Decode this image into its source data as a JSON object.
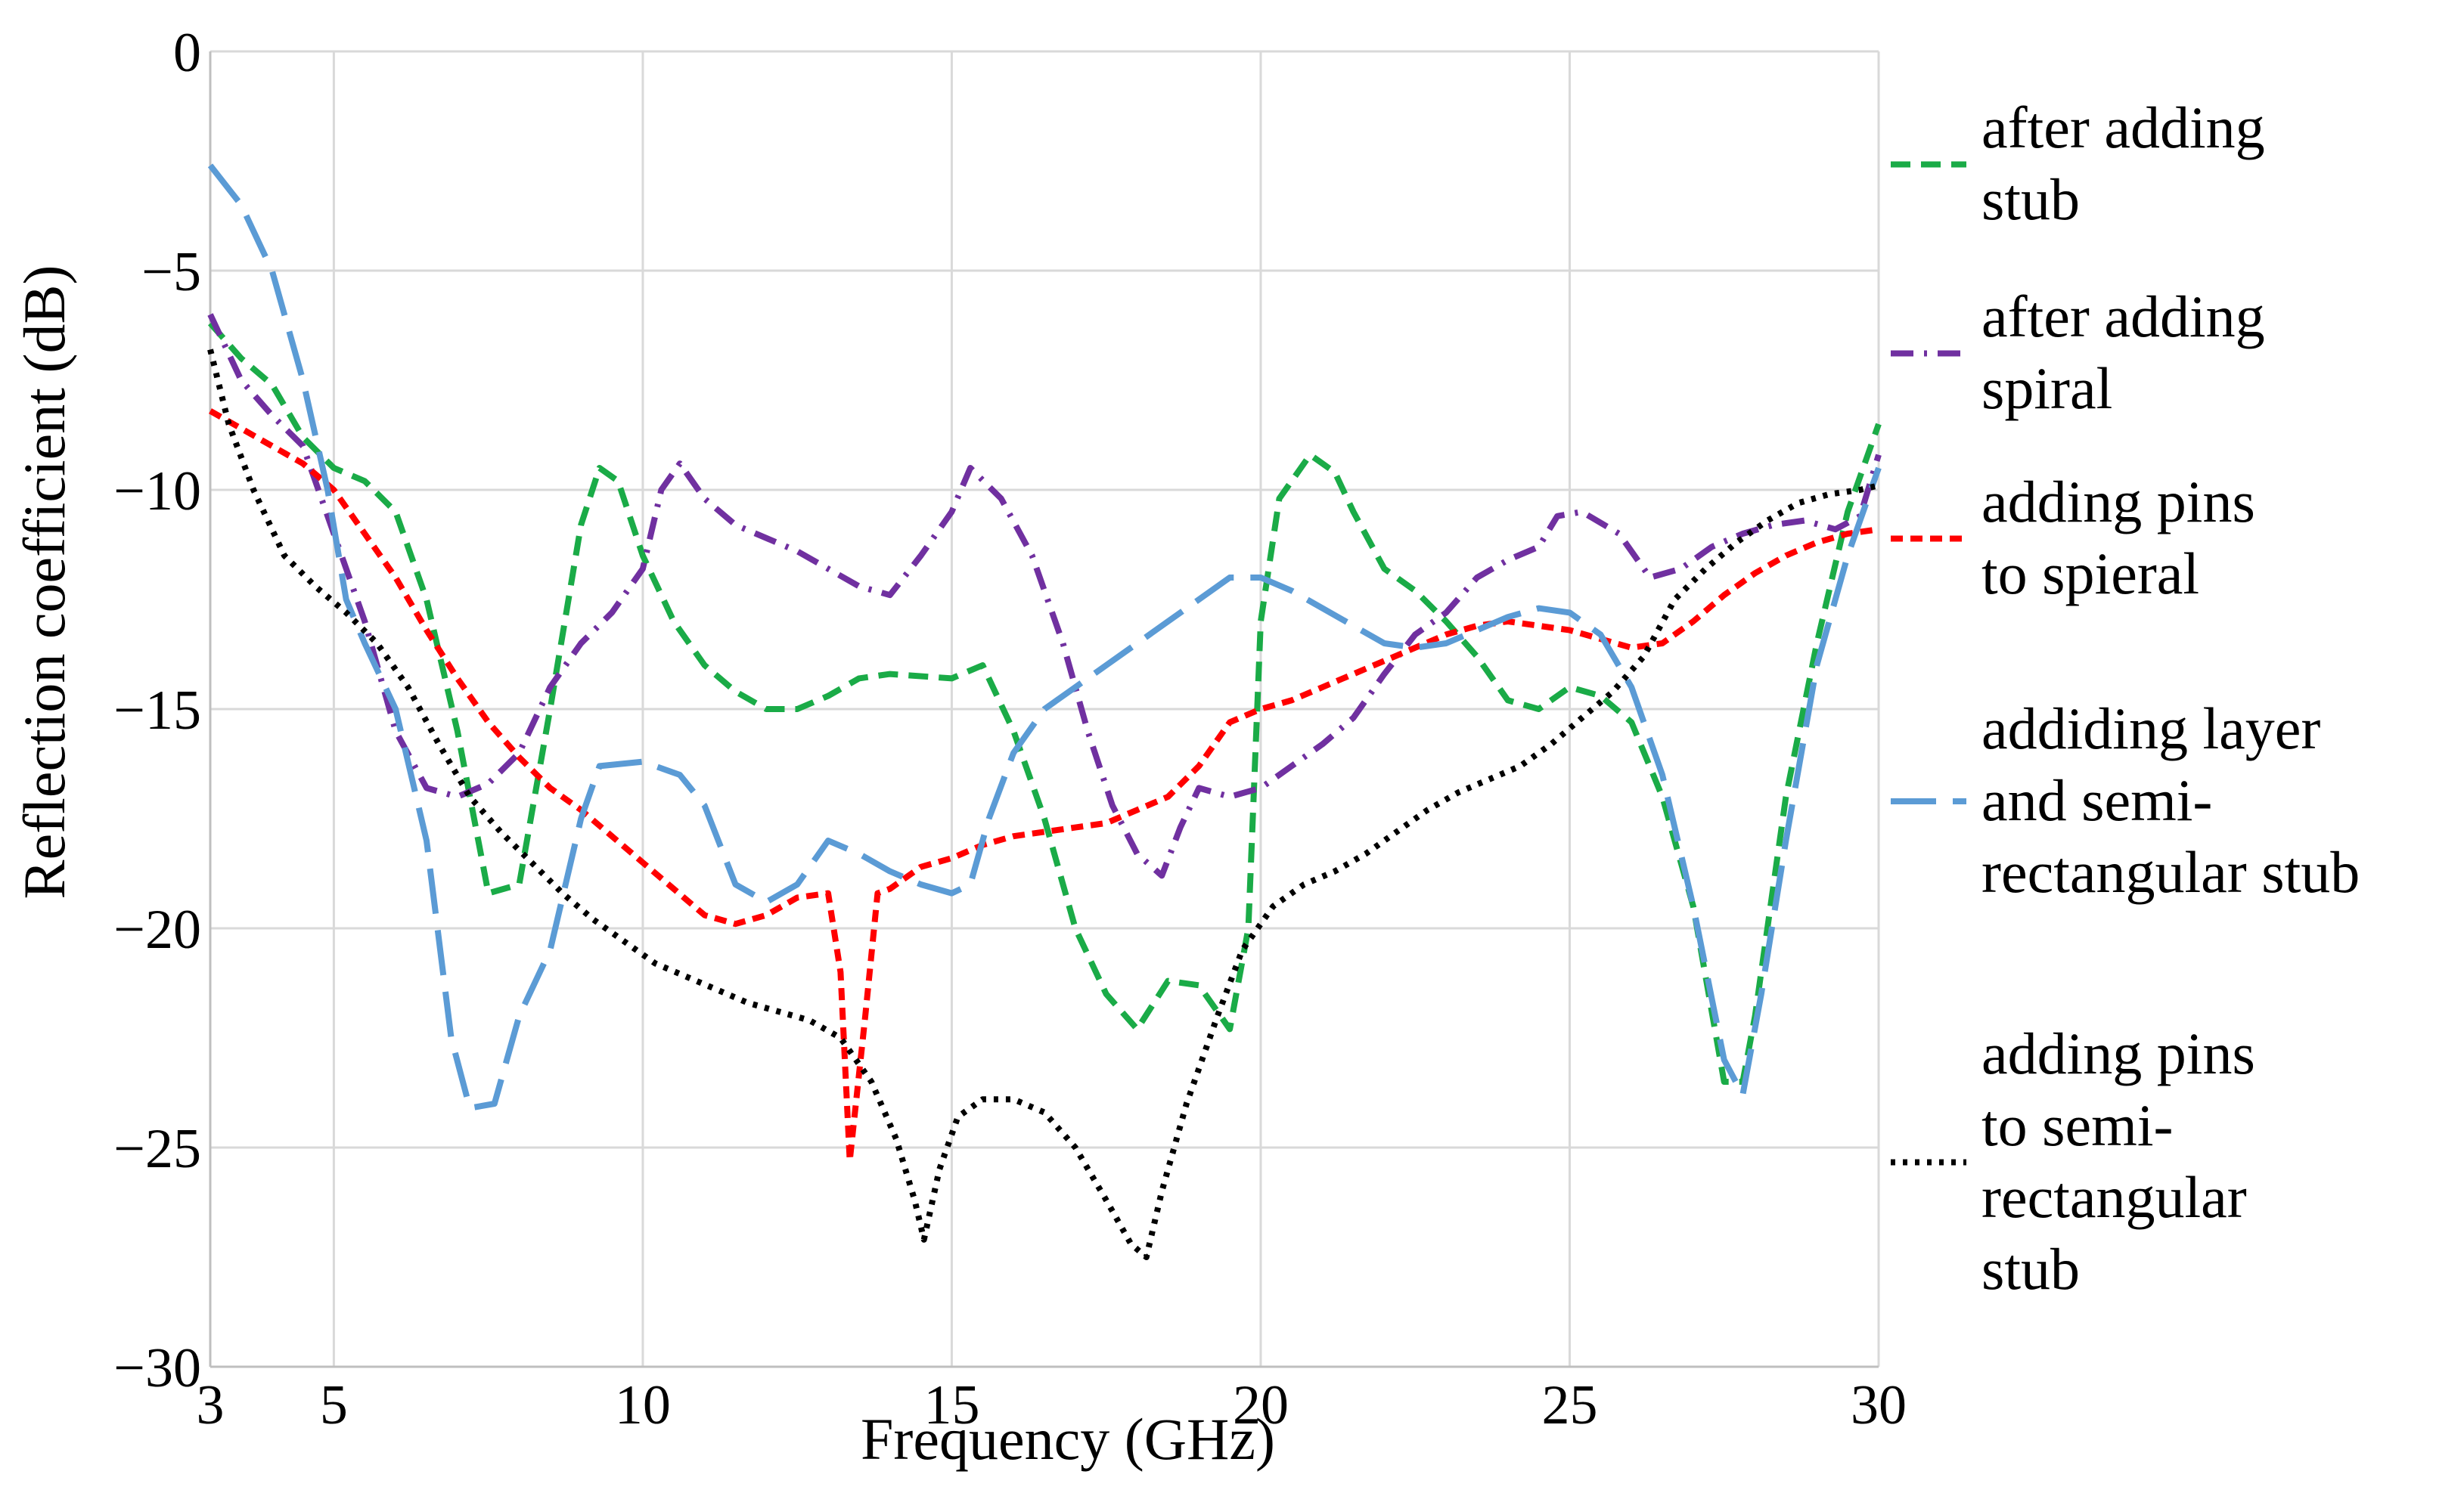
{
  "chart_data": {
    "type": "line",
    "title": "",
    "xlabel": "Frequency (GHz)",
    "ylabel": "Reflection coefficient (dB)",
    "xlim": [
      3,
      30
    ],
    "ylim": [
      -30,
      0
    ],
    "xticks": [
      3,
      5,
      10,
      15,
      20,
      25,
      30
    ],
    "yticks": [
      0,
      -5,
      -10,
      -15,
      -20,
      -25,
      -30
    ],
    "xtick_labels": [
      "3",
      "5",
      "10",
      "15",
      "20",
      "25",
      "30"
    ],
    "ytick_labels": [
      "0",
      "−5",
      "−10",
      "−15",
      "−20",
      "−25",
      "−30"
    ],
    "grid": true,
    "legend_position": "right",
    "series": [
      {
        "name": "after adding stub",
        "legend_lines": [
          "after adding",
          "stub"
        ],
        "color": "#1aab47",
        "dash": "dashed",
        "points": [
          [
            3,
            -6.2
          ],
          [
            3.5,
            -7.0
          ],
          [
            4,
            -7.6
          ],
          [
            4.5,
            -8.8
          ],
          [
            5,
            -9.5
          ],
          [
            5.5,
            -9.8
          ],
          [
            6,
            -10.5
          ],
          [
            6.5,
            -12.5
          ],
          [
            7,
            -15.5
          ],
          [
            7.5,
            -19.2
          ],
          [
            8,
            -19.0
          ],
          [
            8.5,
            -15.0
          ],
          [
            9,
            -10.8
          ],
          [
            9.3,
            -9.5
          ],
          [
            9.6,
            -9.8
          ],
          [
            10,
            -11.5
          ],
          [
            10.5,
            -13.0
          ],
          [
            11,
            -14.0
          ],
          [
            11.5,
            -14.6
          ],
          [
            12,
            -15.0
          ],
          [
            12.5,
            -15.0
          ],
          [
            13,
            -14.7
          ],
          [
            13.5,
            -14.3
          ],
          [
            14,
            -14.2
          ],
          [
            15,
            -14.3
          ],
          [
            15.5,
            -14.0
          ],
          [
            16,
            -15.5
          ],
          [
            16.5,
            -17.5
          ],
          [
            17,
            -20.0
          ],
          [
            17.5,
            -21.5
          ],
          [
            18,
            -22.3
          ],
          [
            18.5,
            -21.2
          ],
          [
            19,
            -21.3
          ],
          [
            19.5,
            -22.3
          ],
          [
            19.8,
            -20.0
          ],
          [
            20,
            -13.0
          ],
          [
            20.3,
            -10.2
          ],
          [
            20.8,
            -9.2
          ],
          [
            21.2,
            -9.6
          ],
          [
            21.5,
            -10.5
          ],
          [
            22,
            -11.8
          ],
          [
            22.5,
            -12.3
          ],
          [
            23,
            -13.0
          ],
          [
            23.5,
            -13.8
          ],
          [
            24,
            -14.8
          ],
          [
            24.5,
            -15.0
          ],
          [
            25,
            -14.5
          ],
          [
            25.5,
            -14.7
          ],
          [
            26,
            -15.3
          ],
          [
            26.5,
            -17.0
          ],
          [
            27,
            -19.5
          ],
          [
            27.5,
            -23.5
          ],
          [
            27.8,
            -23.5
          ],
          [
            28,
            -22.0
          ],
          [
            28.5,
            -17.0
          ],
          [
            29,
            -13.5
          ],
          [
            29.5,
            -10.5
          ],
          [
            30,
            -8.5
          ]
        ]
      },
      {
        "name": "after adding spiral",
        "legend_lines": [
          "after adding",
          "spiral"
        ],
        "color": "#7030a0",
        "dash": "dashdot",
        "points": [
          [
            3,
            -6.0
          ],
          [
            3.5,
            -7.5
          ],
          [
            4,
            -8.3
          ],
          [
            4.5,
            -9.0
          ],
          [
            5,
            -11.0
          ],
          [
            5.5,
            -13.0
          ],
          [
            6,
            -15.5
          ],
          [
            6.5,
            -16.8
          ],
          [
            7,
            -17.0
          ],
          [
            7.5,
            -16.7
          ],
          [
            8,
            -16.0
          ],
          [
            8.5,
            -14.5
          ],
          [
            9,
            -13.5
          ],
          [
            9.5,
            -12.8
          ],
          [
            10,
            -11.8
          ],
          [
            10.3,
            -10.0
          ],
          [
            10.6,
            -9.4
          ],
          [
            11,
            -10.2
          ],
          [
            11.5,
            -10.8
          ],
          [
            12,
            -11.1
          ],
          [
            12.5,
            -11.4
          ],
          [
            13,
            -11.8
          ],
          [
            13.5,
            -12.2
          ],
          [
            14,
            -12.4
          ],
          [
            14.5,
            -11.5
          ],
          [
            15,
            -10.5
          ],
          [
            15.3,
            -9.5
          ],
          [
            15.8,
            -10.2
          ],
          [
            16.3,
            -11.5
          ],
          [
            16.8,
            -13.5
          ],
          [
            17.2,
            -15.5
          ],
          [
            17.6,
            -17.2
          ],
          [
            18,
            -18.3
          ],
          [
            18.4,
            -18.8
          ],
          [
            18.7,
            -17.7
          ],
          [
            19,
            -16.8
          ],
          [
            19.5,
            -17.0
          ],
          [
            20,
            -16.8
          ],
          [
            20.5,
            -16.3
          ],
          [
            21,
            -15.8
          ],
          [
            21.5,
            -15.2
          ],
          [
            22,
            -14.2
          ],
          [
            22.5,
            -13.3
          ],
          [
            23,
            -12.8
          ],
          [
            23.5,
            -12.0
          ],
          [
            24,
            -11.6
          ],
          [
            24.5,
            -11.3
          ],
          [
            24.8,
            -10.6
          ],
          [
            25.2,
            -10.5
          ],
          [
            25.8,
            -11.0
          ],
          [
            26.3,
            -12.0
          ],
          [
            26.8,
            -11.8
          ],
          [
            27.3,
            -11.3
          ],
          [
            27.8,
            -11.0
          ],
          [
            28.3,
            -10.8
          ],
          [
            28.8,
            -10.7
          ],
          [
            29.3,
            -10.9
          ],
          [
            29.7,
            -10.6
          ],
          [
            30,
            -9.2
          ]
        ]
      },
      {
        "name": "adding pins to spieral",
        "legend_lines": [
          "adding pins",
          "to spieral"
        ],
        "color": "#ff0000",
        "dash": "shortdash",
        "points": [
          [
            3,
            -8.2
          ],
          [
            3.5,
            -8.6
          ],
          [
            4,
            -9.0
          ],
          [
            4.5,
            -9.4
          ],
          [
            5,
            -10.0
          ],
          [
            5.5,
            -11.0
          ],
          [
            6,
            -12.0
          ],
          [
            6.5,
            -13.2
          ],
          [
            7,
            -14.3
          ],
          [
            7.5,
            -15.3
          ],
          [
            8,
            -16.1
          ],
          [
            8.5,
            -16.8
          ],
          [
            9,
            -17.3
          ],
          [
            9.5,
            -17.9
          ],
          [
            10,
            -18.5
          ],
          [
            10.5,
            -19.1
          ],
          [
            11,
            -19.7
          ],
          [
            11.5,
            -19.9
          ],
          [
            12,
            -19.7
          ],
          [
            12.5,
            -19.3
          ],
          [
            13,
            -19.2
          ],
          [
            13.2,
            -21.0
          ],
          [
            13.35,
            -25.3
          ],
          [
            13.6,
            -22.0
          ],
          [
            13.8,
            -19.2
          ],
          [
            14,
            -19.1
          ],
          [
            14.5,
            -18.6
          ],
          [
            15,
            -18.4
          ],
          [
            15.5,
            -18.1
          ],
          [
            16,
            -17.9
          ],
          [
            16.5,
            -17.8
          ],
          [
            17,
            -17.7
          ],
          [
            17.5,
            -17.6
          ],
          [
            18,
            -17.3
          ],
          [
            18.5,
            -17.0
          ],
          [
            19,
            -16.3
          ],
          [
            19.5,
            -15.3
          ],
          [
            20,
            -15.0
          ],
          [
            20.5,
            -14.8
          ],
          [
            21,
            -14.5
          ],
          [
            21.5,
            -14.2
          ],
          [
            22,
            -13.9
          ],
          [
            22.5,
            -13.6
          ],
          [
            23,
            -13.3
          ],
          [
            23.5,
            -13.1
          ],
          [
            24,
            -13.0
          ],
          [
            24.5,
            -13.1
          ],
          [
            25,
            -13.2
          ],
          [
            25.5,
            -13.4
          ],
          [
            26,
            -13.6
          ],
          [
            26.5,
            -13.5
          ],
          [
            27,
            -13.0
          ],
          [
            27.5,
            -12.4
          ],
          [
            28,
            -11.9
          ],
          [
            28.5,
            -11.5
          ],
          [
            29,
            -11.2
          ],
          [
            29.5,
            -11.0
          ],
          [
            30,
            -10.9
          ]
        ]
      },
      {
        "name": "addiding layer and semi-rectangular stub",
        "legend_lines": [
          "addiding layer",
          "and semi-",
          "rectangular stub"
        ],
        "color": "#5b9bd5",
        "dash": "longdash",
        "points": [
          [
            3,
            -2.6
          ],
          [
            3.5,
            -3.5
          ],
          [
            4,
            -5.0
          ],
          [
            4.5,
            -7.5
          ],
          [
            4.9,
            -10.0
          ],
          [
            5.2,
            -12.5
          ],
          [
            5.5,
            -13.5
          ],
          [
            6,
            -15.0
          ],
          [
            6.5,
            -18.0
          ],
          [
            6.9,
            -22.5
          ],
          [
            7.2,
            -24.1
          ],
          [
            7.6,
            -24.0
          ],
          [
            8,
            -22.0
          ],
          [
            8.5,
            -20.5
          ],
          [
            9,
            -17.5
          ],
          [
            9.3,
            -16.3
          ],
          [
            10,
            -16.2
          ],
          [
            10.6,
            -16.5
          ],
          [
            11,
            -17.2
          ],
          [
            11.5,
            -19.0
          ],
          [
            12,
            -19.4
          ],
          [
            12.5,
            -19.0
          ],
          [
            13,
            -18.0
          ],
          [
            13.5,
            -18.3
          ],
          [
            14,
            -18.7
          ],
          [
            14.5,
            -19.0
          ],
          [
            15,
            -19.2
          ],
          [
            15.3,
            -19.0
          ],
          [
            15.6,
            -17.5
          ],
          [
            16,
            -16.0
          ],
          [
            16.5,
            -15.0
          ],
          [
            17,
            -14.5
          ],
          [
            17.5,
            -14.0
          ],
          [
            18,
            -13.5
          ],
          [
            18.5,
            -13.0
          ],
          [
            19,
            -12.5
          ],
          [
            19.5,
            -12.0
          ],
          [
            20,
            -12.0
          ],
          [
            20.5,
            -12.3
          ],
          [
            21,
            -12.7
          ],
          [
            21.5,
            -13.1
          ],
          [
            22,
            -13.5
          ],
          [
            22.5,
            -13.6
          ],
          [
            23,
            -13.5
          ],
          [
            23.5,
            -13.2
          ],
          [
            24,
            -12.9
          ],
          [
            24.5,
            -12.7
          ],
          [
            25,
            -12.8
          ],
          [
            25.5,
            -13.3
          ],
          [
            26,
            -14.5
          ],
          [
            26.5,
            -16.5
          ],
          [
            27,
            -19.5
          ],
          [
            27.5,
            -23.0
          ],
          [
            27.8,
            -23.8
          ],
          [
            28.1,
            -21.5
          ],
          [
            28.5,
            -18.0
          ],
          [
            29,
            -14.0
          ],
          [
            29.5,
            -11.5
          ],
          [
            30,
            -9.5
          ]
        ]
      },
      {
        "name": "adding pins to semi-rectangular stub",
        "legend_lines": [
          "adding pins",
          "to semi-",
          "rectangular",
          "stub"
        ],
        "color": "#000000",
        "dash": "dotted",
        "points": [
          [
            3,
            -6.8
          ],
          [
            3.3,
            -8.5
          ],
          [
            3.7,
            -10.0
          ],
          [
            4.2,
            -11.5
          ],
          [
            4.7,
            -12.2
          ],
          [
            5.2,
            -12.8
          ],
          [
            5.7,
            -13.5
          ],
          [
            6.2,
            -14.5
          ],
          [
            6.7,
            -15.8
          ],
          [
            7.2,
            -17.0
          ],
          [
            7.7,
            -17.8
          ],
          [
            8.2,
            -18.5
          ],
          [
            8.7,
            -19.2
          ],
          [
            9.2,
            -19.8
          ],
          [
            9.7,
            -20.3
          ],
          [
            10.2,
            -20.8
          ],
          [
            10.7,
            -21.1
          ],
          [
            11.2,
            -21.4
          ],
          [
            11.7,
            -21.7
          ],
          [
            12.2,
            -21.9
          ],
          [
            12.7,
            -22.1
          ],
          [
            13.2,
            -22.5
          ],
          [
            13.7,
            -23.5
          ],
          [
            14.1,
            -24.8
          ],
          [
            14.4,
            -26.2
          ],
          [
            14.55,
            -27.1
          ],
          [
            14.8,
            -25.5
          ],
          [
            15.1,
            -24.3
          ],
          [
            15.5,
            -23.9
          ],
          [
            16,
            -23.9
          ],
          [
            16.5,
            -24.2
          ],
          [
            17,
            -25.0
          ],
          [
            17.5,
            -26.2
          ],
          [
            17.9,
            -27.2
          ],
          [
            18.15,
            -27.5
          ],
          [
            18.4,
            -26.0
          ],
          [
            18.8,
            -24.0
          ],
          [
            19.3,
            -22.0
          ],
          [
            19.7,
            -20.5
          ],
          [
            20.2,
            -19.5
          ],
          [
            20.7,
            -19.0
          ],
          [
            21.2,
            -18.7
          ],
          [
            21.7,
            -18.3
          ],
          [
            22.2,
            -17.8
          ],
          [
            22.7,
            -17.3
          ],
          [
            23.2,
            -16.9
          ],
          [
            23.7,
            -16.6
          ],
          [
            24.2,
            -16.3
          ],
          [
            24.7,
            -15.8
          ],
          [
            25.2,
            -15.2
          ],
          [
            25.7,
            -14.6
          ],
          [
            26.2,
            -13.8
          ],
          [
            26.7,
            -12.5
          ],
          [
            27.2,
            -11.8
          ],
          [
            27.7,
            -11.2
          ],
          [
            28.2,
            -10.7
          ],
          [
            28.7,
            -10.3
          ],
          [
            29.2,
            -10.1
          ],
          [
            29.7,
            -10.0
          ],
          [
            30,
            -9.9
          ]
        ]
      }
    ]
  }
}
